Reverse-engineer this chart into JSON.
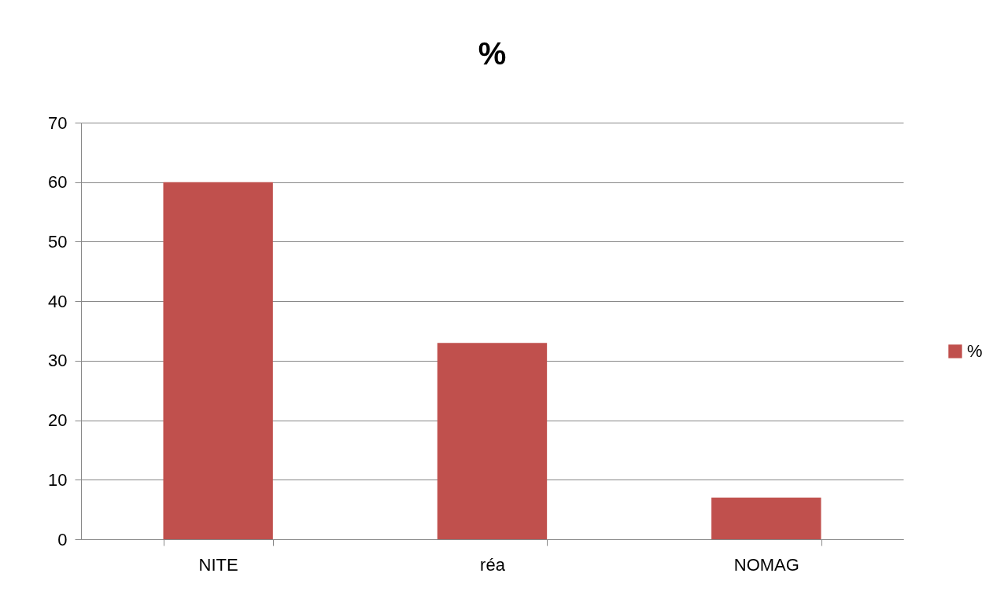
{
  "chart_data": {
    "type": "bar",
    "title": "%",
    "categories": [
      "NITE",
      "réa",
      "NOMAG"
    ],
    "series": [
      {
        "name": "%",
        "color": "#c0504d",
        "values": [
          60,
          33,
          7
        ]
      }
    ],
    "ylim": [
      0,
      70
    ],
    "yticks": [
      0,
      10,
      20,
      30,
      40,
      50,
      60,
      70
    ],
    "grid": "y",
    "legend": "right"
  }
}
